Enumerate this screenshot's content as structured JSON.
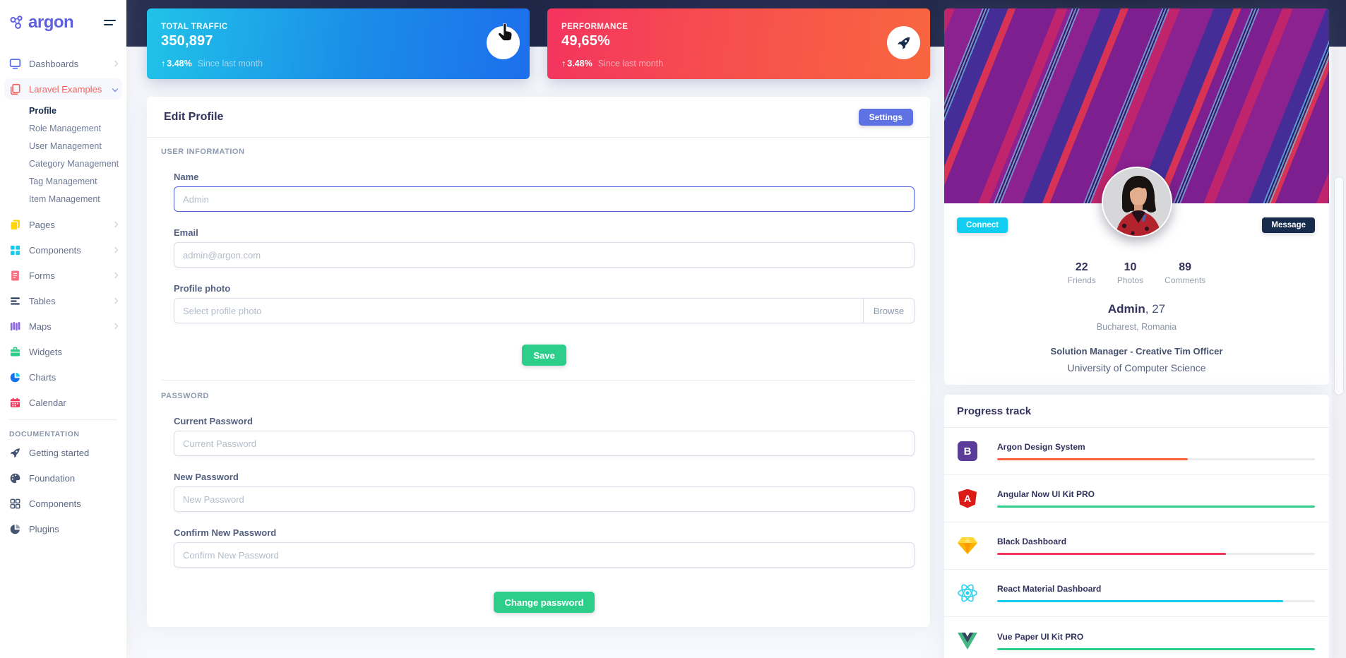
{
  "brand": {
    "logo_text": "argon"
  },
  "sidebar": {
    "items": [
      {
        "label": "Dashboards",
        "icon": "tv-icon",
        "color": "#5e72e4",
        "chevron": "right"
      },
      {
        "label": "Laravel Examples",
        "icon": "copy-icon",
        "color": "#f3605c",
        "chevron": "down",
        "active": true,
        "children": [
          "Profile",
          "Role Management",
          "User Management",
          "Category Management",
          "Tag Management",
          "Item Management"
        ],
        "active_child": "Profile"
      },
      {
        "label": "Pages",
        "icon": "pages-icon",
        "color": "#ffd600",
        "chevron": "right"
      },
      {
        "label": "Components",
        "icon": "grid-icon",
        "color": "#11cdef",
        "chevron": "right"
      },
      {
        "label": "Forms",
        "icon": "document-icon",
        "color": "#f56d7e",
        "chevron": "right"
      },
      {
        "label": "Tables",
        "icon": "align-left-icon",
        "color": "#172b4d",
        "chevron": "right"
      },
      {
        "label": "Maps",
        "icon": "map-icon",
        "color": "#8965e0",
        "chevron": "right"
      },
      {
        "label": "Widgets",
        "icon": "briefcase-icon",
        "color": "#2dce89"
      },
      {
        "label": "Charts",
        "icon": "pie-chart-icon",
        "color": "#1171ef"
      },
      {
        "label": "Calendar",
        "icon": "calendar-icon",
        "color": "#f5365c"
      }
    ],
    "docs_heading": "DOCUMENTATION",
    "docs": [
      {
        "label": "Getting started",
        "icon": "rocket-icon"
      },
      {
        "label": "Foundation",
        "icon": "palette-icon"
      },
      {
        "label": "Components",
        "icon": "grid-icon"
      },
      {
        "label": "Plugins",
        "icon": "pie-chart-icon"
      }
    ]
  },
  "stat_cards": [
    {
      "title": "TOTAL TRAFFIC",
      "value": "350,897",
      "arrow": "↑",
      "delta": "3.48%",
      "period": "Since last month",
      "icon": "hand-cursor-icon",
      "gradient_from": "#21c3e8",
      "gradient_to": "#1d6fec"
    },
    {
      "title": "PERFORMANCE",
      "value": "49,65%",
      "arrow": "↑",
      "delta": "3.48%",
      "period": "Since last month",
      "icon": "rocket-icon",
      "gradient_from": "#f4345f",
      "gradient_to": "#f9663f"
    }
  ],
  "edit_profile": {
    "title": "Edit Profile",
    "settings_label": "Settings",
    "user_info_heading": "USER INFORMATION",
    "password_heading": "PASSWORD",
    "fields": {
      "name": {
        "label": "Name",
        "placeholder": "Admin",
        "value": ""
      },
      "email": {
        "label": "Email",
        "placeholder": "admin@argon.com",
        "value": ""
      },
      "photo": {
        "label": "Profile photo",
        "placeholder": "Select profile photo",
        "browse_label": "Browse"
      },
      "current_password": {
        "label": "Current Password",
        "placeholder": "Current Password",
        "value": ""
      },
      "new_password": {
        "label": "New Password",
        "placeholder": "New Password",
        "value": ""
      },
      "confirm_password": {
        "label": "Confirm New Password",
        "placeholder": "Confirm New Password",
        "value": ""
      }
    },
    "save_label": "Save",
    "change_password_label": "Change password"
  },
  "profile_card": {
    "connect_label": "Connect",
    "message_label": "Message",
    "stats": [
      {
        "value": "22",
        "label": "Friends"
      },
      {
        "value": "10",
        "label": "Photos"
      },
      {
        "value": "89",
        "label": "Comments"
      }
    ],
    "name": "Admin",
    "age_suffix": ", 27",
    "location": "Bucharest, Romania",
    "job": "Solution Manager - Creative Tim Officer",
    "education": "University of Computer Science"
  },
  "progress_track": {
    "title": "Progress track",
    "items": [
      {
        "label": "Argon Design System",
        "icon": "bootstrap-icon",
        "icon_letter": "B",
        "icon_bg": "#5b3d99",
        "value": 60,
        "color": "#fb6340"
      },
      {
        "label": "Angular Now UI Kit PRO",
        "icon": "angular-icon",
        "icon_letter": "A",
        "icon_bg": "#dd1b16",
        "value": 100,
        "color": "#2dce89"
      },
      {
        "label": "Black Dashboard",
        "icon": "sketch-icon",
        "icon_letter": "",
        "icon_bg": "",
        "value": 72,
        "color": "#f5365c"
      },
      {
        "label": "React Material Dashboard",
        "icon": "react-icon",
        "icon_letter": "",
        "icon_bg": "",
        "value": 90,
        "color": "#11cdef"
      },
      {
        "label": "Vue Paper UI Kit PRO",
        "icon": "vue-icon",
        "icon_letter": "",
        "icon_bg": "",
        "value": 100,
        "color": "#2dce89"
      }
    ]
  },
  "colors": {
    "primary": "#5e72e4",
    "success": "#2dce89",
    "info": "#11cdef",
    "danger": "#f5365c",
    "warning": "#fb6340",
    "dark_navy": "#172b4d",
    "navbar_bg": "#222a4c",
    "page_bg": "#f8f9fe"
  }
}
